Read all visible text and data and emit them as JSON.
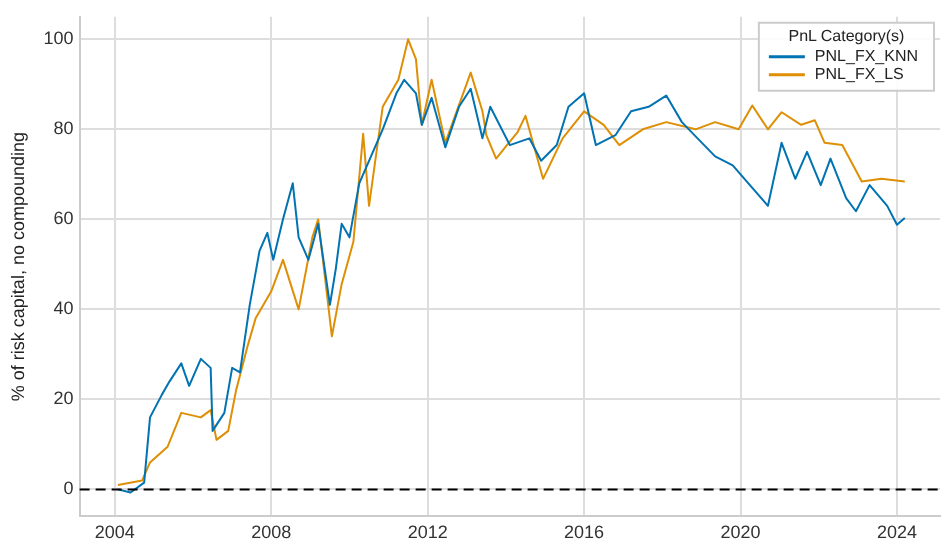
{
  "chart_data": {
    "type": "line",
    "ylabel": "% of risk capital, no compounding",
    "legend_title": "PnL Category(s)",
    "legend": "top right",
    "grid": true,
    "marker": "none",
    "line_style": "solid",
    "xlim": [
      2003.1,
      2025.1
    ],
    "xticks": [
      2004,
      2008,
      2012,
      2016,
      2020,
      2024
    ],
    "ylim": [
      -6,
      105
    ],
    "yticks": [
      0,
      20,
      40,
      60,
      80,
      100
    ],
    "ref_lines": [
      {
        "axis": "y",
        "value": 0,
        "color": "#000000",
        "line_style": "dashed"
      }
    ],
    "series": [
      {
        "name": "PNL_FX_KNN",
        "color": "#0173b2",
        "x": [
          2004.08,
          2004.4,
          2004.75,
          2004.9,
          2005.2,
          2005.4,
          2005.7,
          2005.9,
          2006.2,
          2006.45,
          2006.5,
          2006.8,
          2007.0,
          2007.2,
          2007.45,
          2007.7,
          2007.9,
          2008.05,
          2008.3,
          2008.55,
          2008.7,
          2008.95,
          2009.2,
          2009.5,
          2009.65,
          2009.8,
          2010.0,
          2010.25,
          2010.6,
          2010.85,
          2011.2,
          2011.4,
          2011.7,
          2011.85,
          2012.1,
          2012.45,
          2012.8,
          2013.1,
          2013.4,
          2013.6,
          2014.1,
          2014.6,
          2014.9,
          2015.3,
          2015.6,
          2016.0,
          2016.3,
          2016.8,
          2017.2,
          2017.65,
          2018.1,
          2018.5,
          2018.9,
          2019.35,
          2019.8,
          2020.2,
          2020.7,
          2021.05,
          2021.4,
          2021.7,
          2022.05,
          2022.3,
          2022.7,
          2022.95,
          2023.3,
          2023.75,
          2024.0,
          2024.2
        ],
        "values": [
          0,
          -0.7,
          1.5,
          16,
          21,
          24,
          28,
          23,
          29,
          27,
          13,
          17,
          27,
          26,
          41,
          53,
          57,
          51,
          60,
          68,
          56,
          51,
          59,
          41,
          49,
          59,
          56,
          68,
          75,
          80,
          88,
          91,
          88,
          81,
          87,
          76,
          85,
          89,
          78,
          85,
          76.5,
          78,
          73,
          76.5,
          85,
          88,
          76.5,
          78.7,
          84,
          85,
          87.5,
          81.6,
          78,
          74,
          72,
          68,
          63,
          77,
          69,
          75,
          67.6,
          73.5,
          64.7,
          61.8,
          67.6,
          63,
          58.8,
          60.3
        ]
      },
      {
        "name": "PNL_FX_LS",
        "color": "#de8f05",
        "x": [
          2004.08,
          2004.7,
          2004.9,
          2005.35,
          2005.7,
          2006.2,
          2006.45,
          2006.6,
          2006.9,
          2007.1,
          2007.4,
          2007.6,
          2008.0,
          2008.3,
          2008.7,
          2009.05,
          2009.2,
          2009.55,
          2009.8,
          2010.1,
          2010.35,
          2010.5,
          2010.85,
          2011.25,
          2011.5,
          2011.7,
          2011.85,
          2012.1,
          2012.45,
          2013.1,
          2013.4,
          2013.5,
          2013.75,
          2014.3,
          2014.5,
          2014.95,
          2015.45,
          2016.0,
          2016.5,
          2016.9,
          2017.5,
          2018.1,
          2018.85,
          2019.35,
          2019.95,
          2020.3,
          2020.7,
          2021.05,
          2021.55,
          2021.9,
          2022.15,
          2022.6,
          2023.1,
          2023.6,
          2024.2
        ],
        "values": [
          1,
          2,
          6,
          9.5,
          17,
          16,
          17.6,
          11,
          13,
          22,
          32,
          38,
          44,
          51,
          40,
          56,
          60,
          34,
          45.6,
          55,
          79,
          63,
          85,
          91,
          100,
          95.6,
          81,
          91,
          77,
          92.6,
          84,
          78.7,
          73.5,
          79.4,
          83,
          69,
          78,
          84,
          81,
          76.5,
          80,
          81.6,
          80,
          81.6,
          80,
          85.3,
          80,
          83.8,
          81,
          82,
          77,
          76.5,
          68.4,
          69,
          68.4
        ]
      }
    ]
  }
}
